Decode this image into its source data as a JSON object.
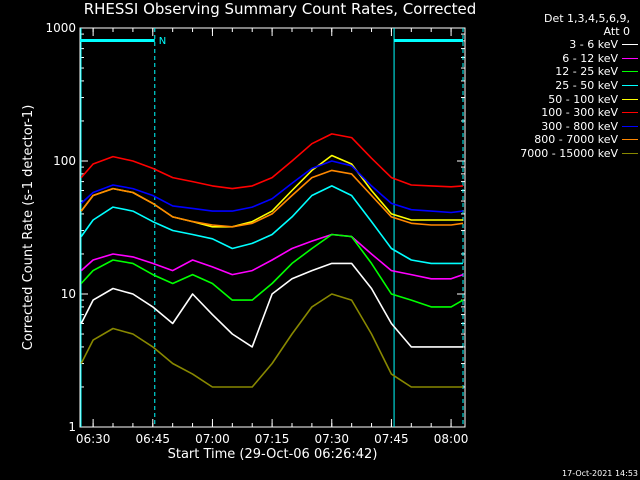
{
  "header": {
    "title": "RHESSI Observing Summary Count Rates, Corrected"
  },
  "legend": {
    "title_lines": [
      "Det 1,3,4,5,6,9,",
      "Att 0"
    ],
    "entries": [
      {
        "label": "3 - 6 keV",
        "color": "#ffffff"
      },
      {
        "label": "6 - 12 keV",
        "color": "#ff00ff"
      },
      {
        "label": "12 - 25 keV",
        "color": "#00ff00"
      },
      {
        "label": "25 - 50 keV",
        "color": "#00ffff"
      },
      {
        "label": "50 - 100 keV",
        "color": "#ffff00"
      },
      {
        "label": "100 - 300 keV",
        "color": "#ff0000"
      },
      {
        "label": "300 - 800 keV",
        "color": "#0000ff"
      },
      {
        "label": "800 - 7000 keV",
        "color": "#ff8800"
      },
      {
        "label": "7000 - 15000 keV",
        "color": "#888800"
      }
    ]
  },
  "footer": {
    "timestamp": "17-Oct-2021 14:53"
  },
  "chart_data": {
    "type": "line",
    "title": "RHESSI Observing Summary Count Rates, Corrected",
    "xlabel": "Start Time (29-Oct-06 06:26:42)",
    "ylabel": "Corrected Count Rate (s-1 detector-1)",
    "yscale": "log",
    "xlim": [
      "06:26:42",
      "08:03:30"
    ],
    "ylim": [
      1,
      1000
    ],
    "x_ticks": [
      "06:30",
      "06:45",
      "07:00",
      "07:15",
      "07:30",
      "07:45",
      "08:00"
    ],
    "y_ticks": [
      "1",
      "10",
      "100",
      "1000"
    ],
    "flags": [
      {
        "label": "N",
        "start": "06:26:42",
        "end": "06:45:30"
      },
      {
        "label": "",
        "start": "07:45:40",
        "end": "08:03:00"
      }
    ],
    "night_markers": [
      "06:45:30",
      "07:45:40",
      "08:03:00"
    ],
    "x": [
      "06:27",
      "06:30",
      "06:35",
      "06:40",
      "06:45",
      "06:50",
      "06:55",
      "07:00",
      "07:05",
      "07:10",
      "07:15",
      "07:20",
      "07:25",
      "07:30",
      "07:35",
      "07:40",
      "07:45",
      "07:50",
      "07:55",
      "08:00",
      "08:03"
    ],
    "series": [
      {
        "name": "3 - 6 keV",
        "color": "#ffffff",
        "values": [
          6,
          9,
          11,
          10,
          8,
          6,
          10,
          7,
          5,
          4,
          10,
          13,
          15,
          17,
          17,
          11,
          6,
          4,
          4,
          4,
          4
        ]
      },
      {
        "name": "6 - 12 keV",
        "color": "#ff00ff",
        "values": [
          15,
          18,
          20,
          19,
          17,
          15,
          18,
          16,
          14,
          15,
          18,
          22,
          25,
          28,
          27,
          20,
          15,
          14,
          13,
          13,
          14
        ]
      },
      {
        "name": "12 - 25 keV",
        "color": "#00ff00",
        "values": [
          12,
          15,
          18,
          17,
          14,
          12,
          14,
          12,
          9,
          9,
          12,
          17,
          22,
          28,
          27,
          17,
          10,
          9,
          8,
          8,
          9
        ]
      },
      {
        "name": "25 - 50 keV",
        "color": "#00ffff",
        "values": [
          27,
          36,
          45,
          42,
          35,
          30,
          28,
          26,
          22,
          24,
          28,
          38,
          55,
          65,
          55,
          35,
          22,
          18,
          17,
          17,
          17
        ]
      },
      {
        "name": "50 - 100 keV",
        "color": "#ffff00",
        "values": [
          42,
          55,
          62,
          58,
          48,
          38,
          35,
          32,
          32,
          35,
          42,
          60,
          85,
          110,
          95,
          60,
          40,
          36,
          36,
          36,
          36
        ]
      },
      {
        "name": "100 - 300 keV",
        "color": "#ff0000",
        "values": [
          75,
          95,
          108,
          100,
          88,
          75,
          70,
          65,
          62,
          65,
          75,
          100,
          135,
          160,
          150,
          105,
          75,
          66,
          65,
          64,
          65
        ]
      },
      {
        "name": "300 - 800 keV",
        "color": "#0000ff",
        "values": [
          48,
          58,
          66,
          62,
          55,
          46,
          44,
          42,
          42,
          45,
          52,
          68,
          88,
          100,
          92,
          65,
          48,
          43,
          42,
          41,
          42
        ]
      },
      {
        "name": "800 - 7000 keV",
        "color": "#ff8800",
        "values": [
          42,
          55,
          62,
          58,
          48,
          38,
          35,
          33,
          32,
          34,
          40,
          55,
          75,
          85,
          80,
          55,
          38,
          34,
          33,
          33,
          34
        ]
      },
      {
        "name": "7000 - 15000 keV",
        "color": "#888800",
        "values": [
          3,
          4.5,
          5.5,
          5,
          4,
          3,
          2.5,
          2,
          2,
          2,
          3,
          5,
          8,
          10,
          9,
          5,
          2.5,
          2,
          2,
          2,
          2
        ]
      }
    ]
  }
}
